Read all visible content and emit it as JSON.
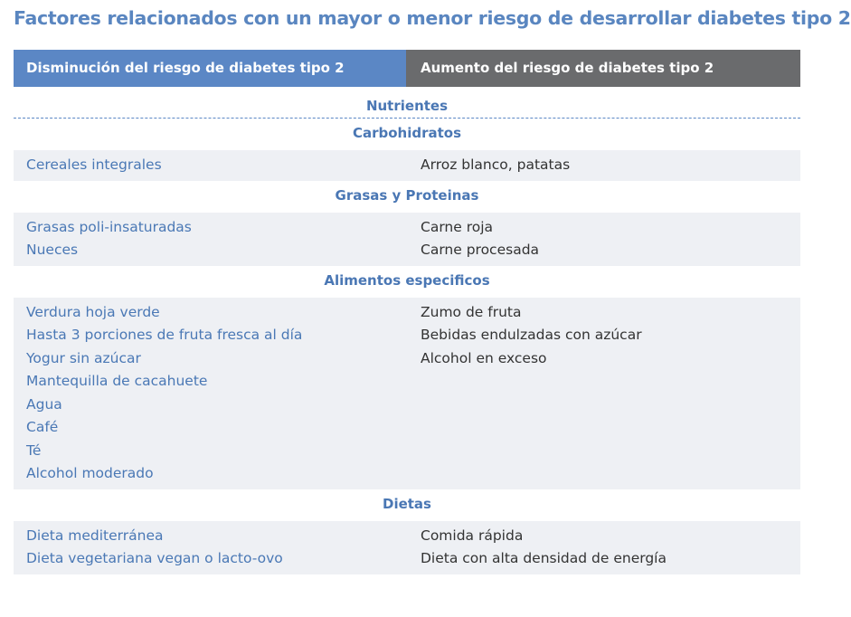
{
  "title": "Factores relacionados con un mayor o menor riesgo de desarrollar diabetes tipo 2",
  "header": {
    "left": "Disminución del riesgo de diabetes  tipo 2",
    "right": "Aumento del riesgo de diabetes tipo 2"
  },
  "group": "Nutrientes",
  "sections": [
    {
      "name": "Carbohidratos",
      "left": [
        "Cereales integrales"
      ],
      "right": [
        "Arroz blanco, patatas"
      ]
    },
    {
      "name": "Grasas y Proteinas",
      "left": [
        "Grasas poli-insaturadas",
        "Nueces"
      ],
      "right": [
        "Carne roja",
        "Carne procesada"
      ]
    },
    {
      "name": "Alimentos especificos",
      "left": [
        "Verdura hoja verde",
        "Hasta 3 porciones de fruta fresca al día",
        "Yogur sin azúcar",
        "Mantequilla de cacahuete",
        "Agua",
        "Café",
        "Té",
        "Alcohol moderado"
      ],
      "right": [
        "Zumo de fruta",
        "Bebidas endulzadas con azúcar",
        "Alcohol en exceso"
      ]
    },
    {
      "name": "Dietas",
      "left": [
        "Dieta mediterránea",
        "Dieta vegetariana vegan o lacto-ovo"
      ],
      "right": [
        "Comida rápida",
        "Dieta con alta densidad de energía"
      ]
    }
  ]
}
